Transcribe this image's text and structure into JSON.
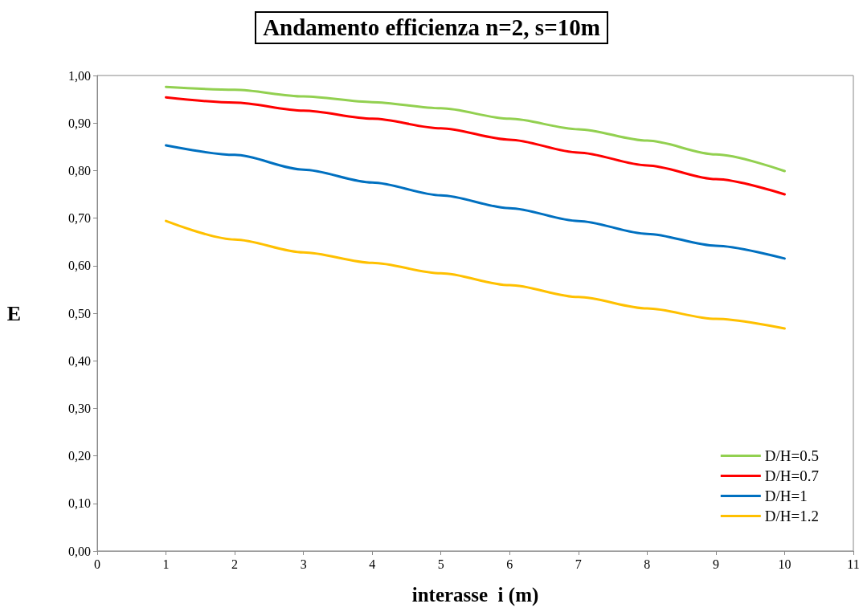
{
  "chart_data": {
    "type": "line",
    "title": "Andamento efficienza n=2, s=10m",
    "xlabel": "interasse  i (m)",
    "ylabel": "E",
    "x": [
      1,
      2,
      3,
      4,
      5,
      6,
      7,
      8,
      9,
      10
    ],
    "series": [
      {
        "name": "D/H=0.5",
        "color": "#92d050",
        "values": [
          0.976,
          0.97,
          0.956,
          0.944,
          0.931,
          0.909,
          0.887,
          0.863,
          0.834,
          0.799
        ]
      },
      {
        "name": "D/H=0.7",
        "color": "#ff0000",
        "values": [
          0.954,
          0.943,
          0.926,
          0.909,
          0.889,
          0.865,
          0.838,
          0.811,
          0.782,
          0.75
        ]
      },
      {
        "name": "D/H=1",
        "color": "#0070c0",
        "values": [
          0.853,
          0.833,
          0.802,
          0.775,
          0.748,
          0.721,
          0.694,
          0.667,
          0.642,
          0.615
        ]
      },
      {
        "name": "D/H=1.2",
        "color": "#ffc000",
        "values": [
          0.694,
          0.655,
          0.628,
          0.606,
          0.584,
          0.559,
          0.534,
          0.51,
          0.488,
          0.468
        ]
      }
    ],
    "xlim": [
      0,
      11
    ],
    "xticks": [
      0,
      1,
      2,
      3,
      4,
      5,
      6,
      7,
      8,
      9,
      10,
      11
    ],
    "ylim": [
      0,
      1
    ],
    "yticks": [
      {
        "value": 0,
        "label": "0,00"
      },
      {
        "value": 0.1,
        "label": "0,10"
      },
      {
        "value": 0.2,
        "label": "0,20"
      },
      {
        "value": 0.3,
        "label": "0,30"
      },
      {
        "value": 0.4,
        "label": "0,40"
      },
      {
        "value": 0.5,
        "label": "0,50"
      },
      {
        "value": 0.6,
        "label": "0,60"
      },
      {
        "value": 0.7,
        "label": "0,70"
      },
      {
        "value": 0.8,
        "label": "0,80"
      },
      {
        "value": 0.9,
        "label": "0,90"
      },
      {
        "value": 1,
        "label": "1,00"
      }
    ],
    "grid": false,
    "legend": "bottom right",
    "marker": "none",
    "line_style": "solid"
  }
}
